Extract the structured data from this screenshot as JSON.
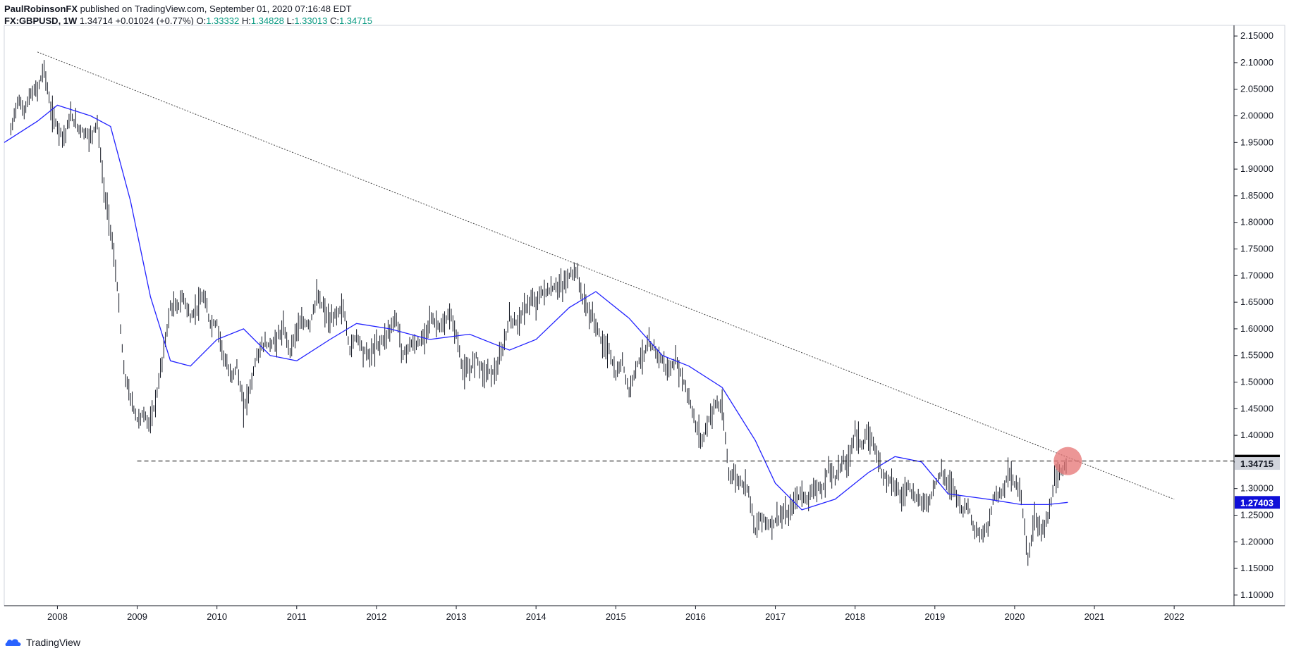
{
  "header": {
    "author": "PaulRobinsonFX",
    "published_text": "published on TradingView.com, September 01, 2020 07:16:48 EDT",
    "symbol": "FX:GBPUSD",
    "interval": "1W",
    "last": "1.34714",
    "change": "+0.01024 (+0.77%)",
    "o_label": "O:",
    "o": "1.33332",
    "h_label": "H:",
    "h": "1.34828",
    "l_label": "L:",
    "l": "1.33013",
    "c_label": "C:",
    "c": "1.34715"
  },
  "footer": {
    "brand": "TradingView",
    "icon": "tradingview-logo-icon"
  },
  "colors": {
    "price_bars": "#131722",
    "moving_average": "#2323ff",
    "trendline": "#444444",
    "support_line": "#000000",
    "highlight_circle": "#e57373",
    "axis_text": "#131722",
    "badge_black": "#000000",
    "badge_gray": "#d1d4dc",
    "badge_blue": "#0f0fd8"
  },
  "chart_data": {
    "type": "line",
    "title": "",
    "xlabel": "",
    "ylabel": "",
    "x_ticks": [
      "2008",
      "2009",
      "2010",
      "2011",
      "2012",
      "2013",
      "2014",
      "2015",
      "2016",
      "2017",
      "2018",
      "2019",
      "2020",
      "2021",
      "2022"
    ],
    "y_ticks": [
      "1.10000",
      "1.15000",
      "1.20000",
      "1.25000",
      "1.30000",
      "1.35000",
      "1.40000",
      "1.45000",
      "1.50000",
      "1.55000",
      "1.60000",
      "1.65000",
      "1.70000",
      "1.75000",
      "1.80000",
      "1.85000",
      "1.90000",
      "1.95000",
      "2.00000",
      "2.05000",
      "2.10000",
      "2.15000"
    ],
    "xlim": [
      "2007-05",
      "2022-10"
    ],
    "ylim": [
      1.08,
      2.17
    ],
    "grid": false,
    "legend": "none",
    "series": [
      {
        "type": "line",
        "points": [
          [
            "2007-06",
            1.97
          ],
          [
            "2007-07",
            2.03
          ],
          [
            "2007-08",
            2.01
          ],
          [
            "2007-09",
            2.04
          ],
          [
            "2007-10",
            2.05
          ],
          [
            "2007-11",
            2.09
          ],
          [
            "2007-12",
            2.01
          ],
          [
            "2008-01",
            1.98
          ],
          [
            "2008-02",
            1.96
          ],
          [
            "2008-03",
            2.0
          ],
          [
            "2008-04",
            1.98
          ],
          [
            "2008-05",
            1.97
          ],
          [
            "2008-06",
            1.96
          ],
          [
            "2008-07",
            1.99
          ],
          [
            "2008-08",
            1.86
          ],
          [
            "2008-09",
            1.79
          ],
          [
            "2008-10",
            1.68
          ],
          [
            "2008-11",
            1.52
          ],
          [
            "2008-12",
            1.47
          ],
          [
            "2009-01",
            1.43
          ],
          [
            "2009-02",
            1.44
          ],
          [
            "2009-03",
            1.42
          ],
          [
            "2009-04",
            1.48
          ],
          [
            "2009-05",
            1.56
          ],
          [
            "2009-06",
            1.64
          ],
          [
            "2009-07",
            1.64
          ],
          [
            "2009-08",
            1.66
          ],
          [
            "2009-09",
            1.62
          ],
          [
            "2009-10",
            1.64
          ],
          [
            "2009-11",
            1.66
          ],
          [
            "2009-12",
            1.61
          ],
          [
            "2010-01",
            1.61
          ],
          [
            "2010-02",
            1.55
          ],
          [
            "2010-03",
            1.51
          ],
          [
            "2010-04",
            1.53
          ],
          [
            "2010-05",
            1.45
          ],
          [
            "2010-06",
            1.49
          ],
          [
            "2010-07",
            1.55
          ],
          [
            "2010-08",
            1.57
          ],
          [
            "2010-09",
            1.57
          ],
          [
            "2010-10",
            1.58
          ],
          [
            "2010-11",
            1.6
          ],
          [
            "2010-12",
            1.56
          ],
          [
            "2011-01",
            1.6
          ],
          [
            "2011-02",
            1.61
          ],
          [
            "2011-03",
            1.61
          ],
          [
            "2011-04",
            1.66
          ],
          [
            "2011-05",
            1.64
          ],
          [
            "2011-06",
            1.61
          ],
          [
            "2011-07",
            1.63
          ],
          [
            "2011-08",
            1.64
          ],
          [
            "2011-09",
            1.56
          ],
          [
            "2011-10",
            1.59
          ],
          [
            "2011-11",
            1.56
          ],
          [
            "2011-12",
            1.55
          ],
          [
            "2012-01",
            1.57
          ],
          [
            "2012-02",
            1.58
          ],
          [
            "2012-03",
            1.6
          ],
          [
            "2012-04",
            1.62
          ],
          [
            "2012-05",
            1.55
          ],
          [
            "2012-06",
            1.57
          ],
          [
            "2012-07",
            1.57
          ],
          [
            "2012-08",
            1.58
          ],
          [
            "2012-09",
            1.62
          ],
          [
            "2012-10",
            1.61
          ],
          [
            "2012-11",
            1.6
          ],
          [
            "2012-12",
            1.63
          ],
          [
            "2013-01",
            1.59
          ],
          [
            "2013-02",
            1.52
          ],
          [
            "2013-03",
            1.52
          ],
          [
            "2013-04",
            1.55
          ],
          [
            "2013-05",
            1.52
          ],
          [
            "2013-06",
            1.52
          ],
          [
            "2013-07",
            1.52
          ],
          [
            "2013-08",
            1.56
          ],
          [
            "2013-09",
            1.62
          ],
          [
            "2013-10",
            1.61
          ],
          [
            "2013-11",
            1.63
          ],
          [
            "2013-12",
            1.65
          ],
          [
            "2014-01",
            1.65
          ],
          [
            "2014-02",
            1.67
          ],
          [
            "2014-03",
            1.67
          ],
          [
            "2014-04",
            1.68
          ],
          [
            "2014-05",
            1.68
          ],
          [
            "2014-06",
            1.7
          ],
          [
            "2014-07",
            1.71
          ],
          [
            "2014-08",
            1.66
          ],
          [
            "2014-09",
            1.63
          ],
          [
            "2014-10",
            1.61
          ],
          [
            "2014-11",
            1.57
          ],
          [
            "2014-12",
            1.56
          ],
          [
            "2015-01",
            1.51
          ],
          [
            "2015-02",
            1.54
          ],
          [
            "2015-03",
            1.48
          ],
          [
            "2015-04",
            1.53
          ],
          [
            "2015-05",
            1.55
          ],
          [
            "2015-06",
            1.57
          ],
          [
            "2015-07",
            1.56
          ],
          [
            "2015-08",
            1.54
          ],
          [
            "2015-09",
            1.52
          ],
          [
            "2015-10",
            1.54
          ],
          [
            "2015-11",
            1.51
          ],
          [
            "2015-12",
            1.47
          ],
          [
            "2016-01",
            1.42
          ],
          [
            "2016-02",
            1.39
          ],
          [
            "2016-03",
            1.43
          ],
          [
            "2016-04",
            1.46
          ],
          [
            "2016-05",
            1.45
          ],
          [
            "2016-06",
            1.33
          ],
          [
            "2016-07",
            1.32
          ],
          [
            "2016-08",
            1.31
          ],
          [
            "2016-09",
            1.3
          ],
          [
            "2016-10",
            1.22
          ],
          [
            "2016-11",
            1.25
          ],
          [
            "2016-12",
            1.23
          ],
          [
            "2017-01",
            1.24
          ],
          [
            "2017-02",
            1.25
          ],
          [
            "2017-03",
            1.25
          ],
          [
            "2017-04",
            1.28
          ],
          [
            "2017-05",
            1.29
          ],
          [
            "2017-06",
            1.28
          ],
          [
            "2017-07",
            1.31
          ],
          [
            "2017-08",
            1.29
          ],
          [
            "2017-09",
            1.34
          ],
          [
            "2017-10",
            1.32
          ],
          [
            "2017-11",
            1.35
          ],
          [
            "2017-12",
            1.35
          ],
          [
            "2018-01",
            1.41
          ],
          [
            "2018-02",
            1.38
          ],
          [
            "2018-03",
            1.4
          ],
          [
            "2018-04",
            1.38
          ],
          [
            "2018-05",
            1.33
          ],
          [
            "2018-06",
            1.32
          ],
          [
            "2018-07",
            1.31
          ],
          [
            "2018-08",
            1.28
          ],
          [
            "2018-09",
            1.31
          ],
          [
            "2018-10",
            1.28
          ],
          [
            "2018-11",
            1.28
          ],
          [
            "2018-12",
            1.27
          ],
          [
            "2019-01",
            1.31
          ],
          [
            "2019-02",
            1.33
          ],
          [
            "2019-03",
            1.31
          ],
          [
            "2019-04",
            1.3
          ],
          [
            "2019-05",
            1.26
          ],
          [
            "2019-06",
            1.27
          ],
          [
            "2019-07",
            1.22
          ],
          [
            "2019-08",
            1.21
          ],
          [
            "2019-09",
            1.23
          ],
          [
            "2019-10",
            1.29
          ],
          [
            "2019-11",
            1.29
          ],
          [
            "2019-12",
            1.33
          ],
          [
            "2020-01",
            1.31
          ],
          [
            "2020-02",
            1.29
          ],
          [
            "2020-03",
            1.16
          ],
          [
            "2020-04",
            1.25
          ],
          [
            "2020-05",
            1.22
          ],
          [
            "2020-06",
            1.24
          ],
          [
            "2020-07",
            1.31
          ],
          [
            "2020-08",
            1.33
          ],
          [
            "2020-09",
            1.34715
          ]
        ]
      },
      {
        "type": "line",
        "points": [
          [
            "2007-05",
            1.95
          ],
          [
            "2007-10",
            1.99
          ],
          [
            "2008-01",
            2.02
          ],
          [
            "2008-06",
            2.0
          ],
          [
            "2008-09",
            1.98
          ],
          [
            "2008-12",
            1.84
          ],
          [
            "2009-03",
            1.66
          ],
          [
            "2009-06",
            1.54
          ],
          [
            "2009-09",
            1.53
          ],
          [
            "2010-01",
            1.58
          ],
          [
            "2010-05",
            1.6
          ],
          [
            "2010-09",
            1.55
          ],
          [
            "2011-01",
            1.54
          ],
          [
            "2011-06",
            1.58
          ],
          [
            "2011-10",
            1.61
          ],
          [
            "2012-03",
            1.6
          ],
          [
            "2012-09",
            1.58
          ],
          [
            "2013-03",
            1.59
          ],
          [
            "2013-09",
            1.56
          ],
          [
            "2014-01",
            1.58
          ],
          [
            "2014-06",
            1.64
          ],
          [
            "2014-10",
            1.67
          ],
          [
            "2015-03",
            1.62
          ],
          [
            "2015-08",
            1.55
          ],
          [
            "2015-12",
            1.53
          ],
          [
            "2016-05",
            1.49
          ],
          [
            "2016-10",
            1.39
          ],
          [
            "2017-01",
            1.31
          ],
          [
            "2017-05",
            1.26
          ],
          [
            "2017-10",
            1.28
          ],
          [
            "2018-03",
            1.33
          ],
          [
            "2018-07",
            1.36
          ],
          [
            "2018-11",
            1.35
          ],
          [
            "2019-03",
            1.29
          ],
          [
            "2019-09",
            1.28
          ],
          [
            "2020-02",
            1.27
          ],
          [
            "2020-06",
            1.27
          ],
          [
            "2020-09",
            1.27403
          ]
        ]
      },
      {
        "type": "line",
        "points": [
          [
            "2007-10",
            2.12
          ],
          [
            "2022-01",
            1.28
          ]
        ]
      }
    ],
    "annotations": [
      {
        "type": "horizontal-line",
        "value": 1.3516,
        "from": "2009-01",
        "to": "2022-10"
      },
      {
        "type": "circle",
        "x": "2020-09",
        "y": 1.3516
      },
      {
        "type": "price-badge",
        "value": "1.35160",
        "style": "black"
      },
      {
        "type": "price-badge",
        "value": "1.34715",
        "style": "gray"
      },
      {
        "type": "price-badge",
        "value": "1.27403",
        "style": "blue"
      }
    ]
  }
}
